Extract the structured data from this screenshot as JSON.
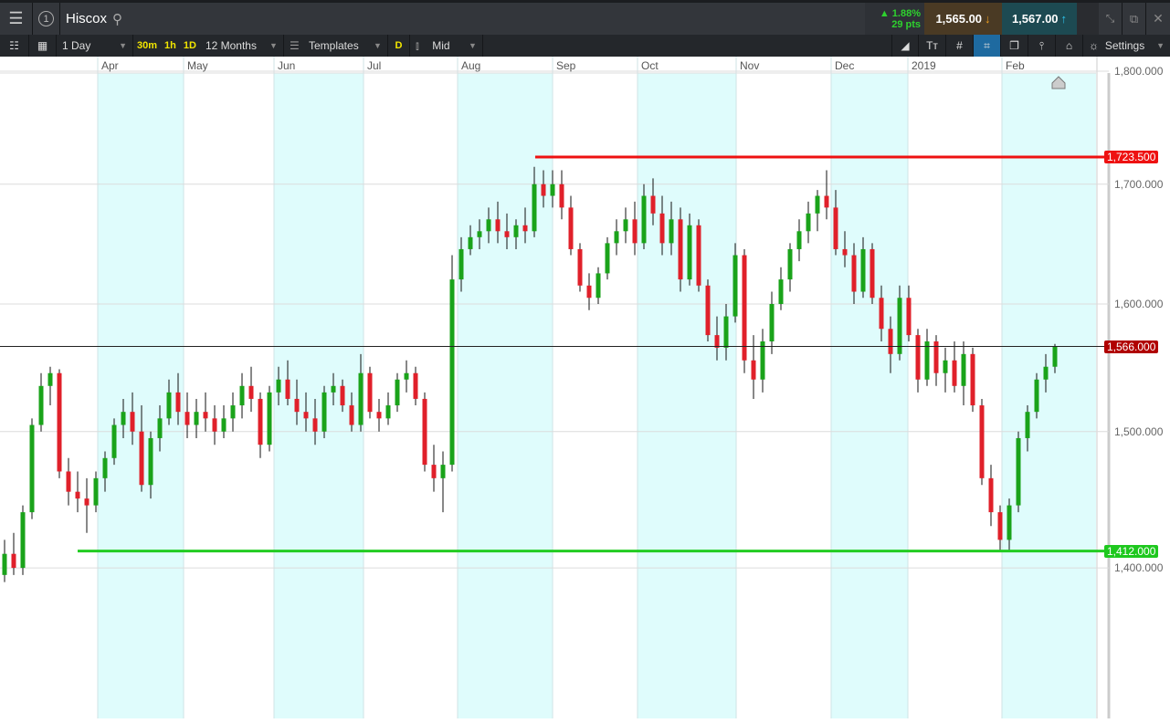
{
  "header": {
    "instrument": "Hiscox",
    "workspace_number": "1",
    "change_pct": "▲ 1.88%",
    "change_pts": "29 pts",
    "sell_price": "1,565.00",
    "buy_price": "1,567.00"
  },
  "toolbar": {
    "interval": "1 Day",
    "quick_intervals": [
      "30m",
      "1h",
      "1D"
    ],
    "range": "12 Months",
    "templates": "Templates",
    "d_badge": "D",
    "price_type": "Mid",
    "settings": "Settings"
  },
  "colors": {
    "up": "#1aa31a",
    "down": "#e0202a",
    "resistance": "#ee1111",
    "support": "#22cc22",
    "shade": "#dffcfc"
  },
  "chart_data": {
    "type": "candlestick",
    "y_scale": "log",
    "x_ticks": [
      "Apr",
      "May",
      "Jun",
      "Jul",
      "Aug",
      "Sep",
      "Oct",
      "Nov",
      "Dec",
      "2019",
      "Feb"
    ],
    "y_ticks": [
      "1,800.000",
      "1,700.000",
      "1,600.000",
      "1,500.000",
      "1,400.000"
    ],
    "y_tick_values": [
      1800,
      1700,
      1600,
      1500,
      1400
    ],
    "ylim": [
      1330,
      1820
    ],
    "current_price": {
      "value": 1566,
      "label": "1,566.000"
    },
    "resistance": {
      "value": 1723.5,
      "label": "1,723.500"
    },
    "support": {
      "value": 1412,
      "label": "1,412.000"
    },
    "candles_ohlc": [
      [
        1395,
        1420,
        1390,
        1410
      ],
      [
        1410,
        1425,
        1395,
        1400
      ],
      [
        1400,
        1445,
        1395,
        1440
      ],
      [
        1440,
        1510,
        1435,
        1505
      ],
      [
        1505,
        1545,
        1500,
        1535
      ],
      [
        1535,
        1550,
        1520,
        1545
      ],
      [
        1545,
        1548,
        1465,
        1470
      ],
      [
        1470,
        1480,
        1445,
        1455
      ],
      [
        1455,
        1470,
        1440,
        1450
      ],
      [
        1450,
        1465,
        1425,
        1445
      ],
      [
        1445,
        1470,
        1440,
        1465
      ],
      [
        1465,
        1485,
        1455,
        1480
      ],
      [
        1480,
        1510,
        1475,
        1505
      ],
      [
        1505,
        1525,
        1495,
        1515
      ],
      [
        1515,
        1530,
        1490,
        1500
      ],
      [
        1500,
        1520,
        1455,
        1460
      ],
      [
        1460,
        1500,
        1450,
        1495
      ],
      [
        1495,
        1520,
        1485,
        1510
      ],
      [
        1510,
        1540,
        1505,
        1530
      ],
      [
        1530,
        1545,
        1505,
        1515
      ],
      [
        1515,
        1530,
        1495,
        1505
      ],
      [
        1505,
        1525,
        1495,
        1515
      ],
      [
        1515,
        1530,
        1500,
        1510
      ],
      [
        1510,
        1520,
        1490,
        1500
      ],
      [
        1500,
        1520,
        1495,
        1510
      ],
      [
        1510,
        1530,
        1500,
        1520
      ],
      [
        1520,
        1545,
        1510,
        1535
      ],
      [
        1535,
        1550,
        1515,
        1525
      ],
      [
        1525,
        1530,
        1480,
        1490
      ],
      [
        1490,
        1535,
        1485,
        1530
      ],
      [
        1530,
        1550,
        1520,
        1540
      ],
      [
        1540,
        1555,
        1520,
        1525
      ],
      [
        1525,
        1540,
        1505,
        1515
      ],
      [
        1515,
        1530,
        1500,
        1510
      ],
      [
        1510,
        1525,
        1490,
        1500
      ],
      [
        1500,
        1535,
        1495,
        1530
      ],
      [
        1530,
        1545,
        1520,
        1535
      ],
      [
        1535,
        1540,
        1515,
        1520
      ],
      [
        1520,
        1530,
        1500,
        1505
      ],
      [
        1505,
        1560,
        1500,
        1545
      ],
      [
        1545,
        1550,
        1510,
        1515
      ],
      [
        1515,
        1525,
        1500,
        1510
      ],
      [
        1510,
        1530,
        1505,
        1520
      ],
      [
        1520,
        1545,
        1515,
        1540
      ],
      [
        1540,
        1555,
        1530,
        1545
      ],
      [
        1545,
        1550,
        1520,
        1525
      ],
      [
        1525,
        1530,
        1470,
        1475
      ],
      [
        1475,
        1490,
        1455,
        1465
      ],
      [
        1465,
        1485,
        1440,
        1475
      ],
      [
        1475,
        1640,
        1470,
        1620
      ],
      [
        1620,
        1655,
        1610,
        1645
      ],
      [
        1645,
        1665,
        1640,
        1655
      ],
      [
        1655,
        1670,
        1645,
        1660
      ],
      [
        1660,
        1680,
        1650,
        1670
      ],
      [
        1670,
        1685,
        1650,
        1660
      ],
      [
        1660,
        1675,
        1645,
        1655
      ],
      [
        1655,
        1670,
        1645,
        1665
      ],
      [
        1665,
        1680,
        1650,
        1660
      ],
      [
        1660,
        1715,
        1655,
        1700
      ],
      [
        1700,
        1712,
        1680,
        1690
      ],
      [
        1690,
        1712,
        1680,
        1700
      ],
      [
        1700,
        1712,
        1670,
        1680
      ],
      [
        1680,
        1690,
        1640,
        1645
      ],
      [
        1645,
        1650,
        1610,
        1615
      ],
      [
        1615,
        1625,
        1595,
        1605
      ],
      [
        1605,
        1630,
        1600,
        1625
      ],
      [
        1625,
        1655,
        1620,
        1650
      ],
      [
        1650,
        1670,
        1640,
        1660
      ],
      [
        1660,
        1680,
        1650,
        1670
      ],
      [
        1670,
        1685,
        1640,
        1650
      ],
      [
        1650,
        1700,
        1645,
        1690
      ],
      [
        1690,
        1705,
        1665,
        1675
      ],
      [
        1675,
        1690,
        1640,
        1650
      ],
      [
        1650,
        1685,
        1640,
        1670
      ],
      [
        1670,
        1680,
        1610,
        1620
      ],
      [
        1620,
        1675,
        1615,
        1665
      ],
      [
        1665,
        1670,
        1610,
        1615
      ],
      [
        1615,
        1620,
        1570,
        1575
      ],
      [
        1575,
        1590,
        1555,
        1565
      ],
      [
        1565,
        1600,
        1555,
        1590
      ],
      [
        1590,
        1650,
        1585,
        1640
      ],
      [
        1640,
        1645,
        1545,
        1555
      ],
      [
        1555,
        1575,
        1525,
        1540
      ],
      [
        1540,
        1580,
        1530,
        1570
      ],
      [
        1570,
        1610,
        1560,
        1600
      ],
      [
        1600,
        1630,
        1595,
        1620
      ],
      [
        1620,
        1650,
        1610,
        1645
      ],
      [
        1645,
        1670,
        1635,
        1660
      ],
      [
        1660,
        1685,
        1650,
        1675
      ],
      [
        1675,
        1695,
        1660,
        1690
      ],
      [
        1690,
        1712,
        1670,
        1680
      ],
      [
        1680,
        1695,
        1640,
        1645
      ],
      [
        1645,
        1660,
        1630,
        1640
      ],
      [
        1640,
        1650,
        1600,
        1610
      ],
      [
        1610,
        1655,
        1605,
        1645
      ],
      [
        1645,
        1650,
        1600,
        1605
      ],
      [
        1605,
        1615,
        1570,
        1580
      ],
      [
        1580,
        1590,
        1545,
        1560
      ],
      [
        1560,
        1615,
        1555,
        1605
      ],
      [
        1605,
        1615,
        1570,
        1575
      ],
      [
        1575,
        1580,
        1530,
        1540
      ],
      [
        1540,
        1580,
        1535,
        1570
      ],
      [
        1570,
        1575,
        1535,
        1545
      ],
      [
        1545,
        1565,
        1530,
        1555
      ],
      [
        1555,
        1570,
        1530,
        1535
      ],
      [
        1535,
        1570,
        1520,
        1560
      ],
      [
        1560,
        1565,
        1515,
        1520
      ],
      [
        1520,
        1525,
        1460,
        1465
      ],
      [
        1465,
        1475,
        1430,
        1440
      ],
      [
        1440,
        1445,
        1412,
        1420
      ],
      [
        1420,
        1450,
        1412,
        1445
      ],
      [
        1445,
        1500,
        1440,
        1495
      ],
      [
        1495,
        1520,
        1485,
        1515
      ],
      [
        1515,
        1545,
        1510,
        1540
      ],
      [
        1540,
        1560,
        1530,
        1550
      ],
      [
        1550,
        1568,
        1545,
        1566
      ]
    ]
  }
}
